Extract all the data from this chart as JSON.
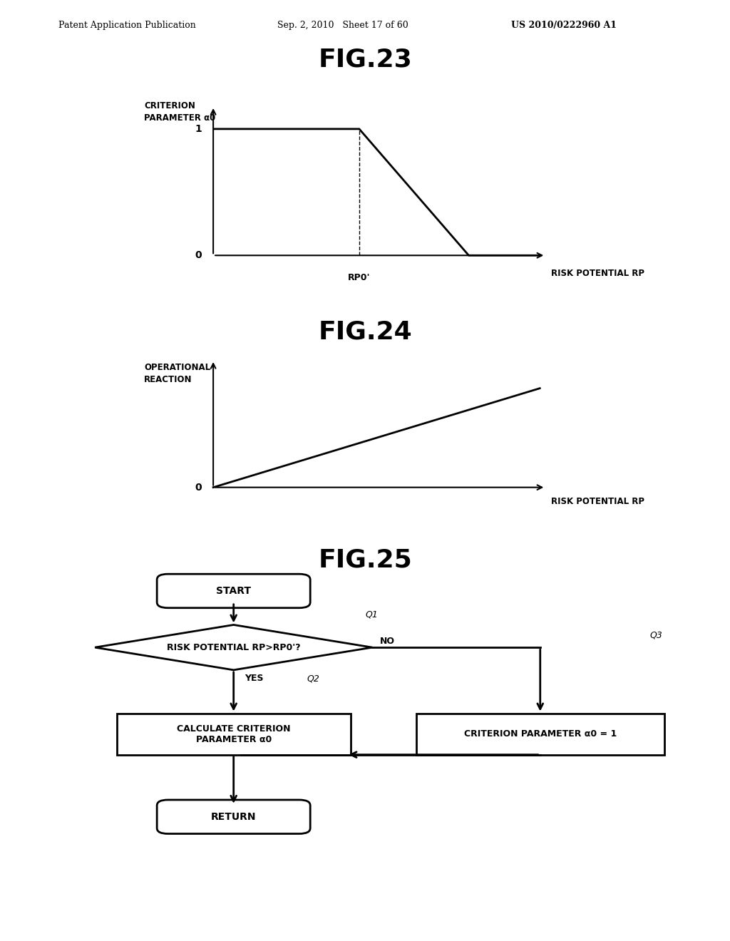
{
  "header_left": "Patent Application Publication",
  "header_mid": "Sep. 2, 2010   Sheet 17 of 60",
  "header_right": "US 2010/0222960 A1",
  "fig23_title": "FIG.23",
  "fig24_title": "FIG.24",
  "fig25_title": "FIG.25",
  "fig23_ylabel": "CRITERION\nPARAMETER α0",
  "fig23_xlabel": "RISK POTENTIAL RP",
  "fig23_tick1": "1",
  "fig23_tick0": "0",
  "fig23_rp0_label": "RP0'",
  "fig24_ylabel": "OPERATIONAL\nREACTION",
  "fig24_xlabel": "RISK POTENTIAL RP",
  "fig24_tick0": "0",
  "fig25_start": "START",
  "fig25_q1_label": "Q1",
  "fig25_q1_text": "RISK POTENTIAL RP>RP0'?",
  "fig25_no": "NO",
  "fig25_yes": "YES",
  "fig25_q2_label": "Q2",
  "fig25_q2_text": "CALCULATE CRITERION\nPARAMETER α0",
  "fig25_q3_label": "Q3",
  "fig25_q3_text": "CRITERION PARAMETER α0 = 1",
  "fig25_return": "RETURN",
  "bg_color": "#ffffff",
  "line_color": "#000000"
}
